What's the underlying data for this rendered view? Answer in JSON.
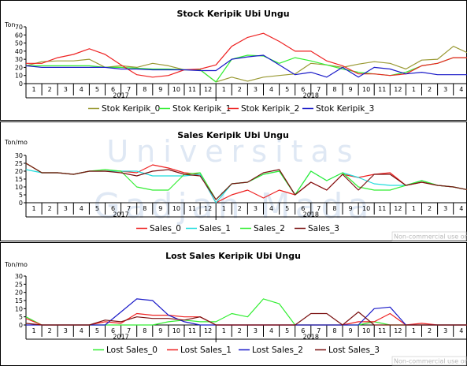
{
  "watermark": {
    "line1": "Universitas",
    "line2": "Gadjah Mada"
  },
  "chart_data": [
    {
      "type": "line",
      "title": "Stock Keripik Ubi Ungu",
      "ylabel": "Ton",
      "ylim": [
        0,
        70
      ],
      "yticks": [
        0,
        10,
        20,
        30,
        40,
        50,
        60,
        70
      ],
      "x_tick_labels": [
        "1",
        "2",
        "3",
        "4",
        "5",
        "6",
        "7",
        "8",
        "9",
        "10",
        "11",
        "12",
        "1",
        "2",
        "3",
        "4",
        "5",
        "6",
        "7",
        "8",
        "9",
        "10",
        "11",
        "12",
        "1",
        "2",
        "3",
        "4"
      ],
      "year_labels": [
        "2017",
        "2018"
      ],
      "noncommercial": "Non-commercial use only",
      "series": [
        {
          "name": "Stok Keripik_0",
          "color": "#999933",
          "values": [
            22,
            27,
            28,
            28,
            30,
            20,
            22,
            20,
            25,
            22,
            17,
            17,
            2,
            8,
            3,
            8,
            10,
            12,
            25,
            23,
            20,
            24,
            27,
            25,
            18,
            29,
            30,
            46,
            37
          ]
        },
        {
          "name": "Stok Keripik_1",
          "color": "#33ee33",
          "values": [
            22,
            22,
            22,
            22,
            22,
            20,
            20,
            19,
            18,
            18,
            17,
            17,
            2,
            30,
            35,
            34,
            25,
            32,
            28,
            23,
            18,
            14,
            12,
            10,
            14,
            22,
            25,
            32,
            32
          ]
        },
        {
          "name": "Stok Keripik_2",
          "color": "#ee2222",
          "values": [
            25,
            25,
            32,
            36,
            43,
            36,
            23,
            11,
            8,
            10,
            17,
            18,
            23,
            46,
            57,
            62,
            52,
            40,
            40,
            28,
            22,
            12,
            12,
            10,
            12,
            22,
            25,
            32,
            32
          ]
        },
        {
          "name": "Stok Keripik_3",
          "color": "#1a1ac8",
          "values": [
            22,
            20,
            20,
            20,
            20,
            20,
            18,
            18,
            17,
            17,
            17,
            16,
            16,
            30,
            33,
            35,
            23,
            11,
            14,
            8,
            20,
            8,
            20,
            18,
            12,
            14,
            11,
            11,
            11
          ]
        }
      ]
    },
    {
      "type": "line",
      "title": "Sales Keripik Ubi Ungu",
      "ylabel": "Ton/mo",
      "ylim": [
        0,
        30
      ],
      "yticks": [
        0,
        5,
        10,
        15,
        20,
        25,
        30
      ],
      "x_tick_labels": [
        "1",
        "2",
        "3",
        "4",
        "5",
        "6",
        "7",
        "8",
        "9",
        "10",
        "11",
        "12",
        "1",
        "2",
        "3",
        "4",
        "5",
        "6",
        "7",
        "8",
        "9",
        "10",
        "11",
        "12",
        "1",
        "2",
        "3",
        "4"
      ],
      "year_labels": [
        "2017",
        "2018"
      ],
      "noncommercial": "Non-commercial use only",
      "series": [
        {
          "name": "Sales_0",
          "color": "#ee2222",
          "values": [
            25,
            19,
            19,
            18,
            20,
            20,
            20,
            19,
            24,
            22,
            19,
            18,
            0,
            5,
            8,
            3,
            8,
            5,
            13,
            8,
            18,
            16,
            18,
            19,
            11,
            13,
            11,
            10,
            8
          ]
        },
        {
          "name": "Sales_1",
          "color": "#22dddd",
          "values": [
            21,
            19,
            19,
            18,
            20,
            20,
            20,
            20,
            17,
            17,
            17,
            18,
            0,
            12,
            13,
            18,
            20,
            5,
            20,
            14,
            19,
            16,
            12,
            11,
            11,
            14,
            11,
            10,
            8
          ]
        },
        {
          "name": "Sales_2",
          "color": "#33ee33",
          "values": [
            25,
            19,
            19,
            18,
            20,
            21,
            20,
            10,
            8,
            8,
            18,
            19,
            2,
            12,
            13,
            18,
            20,
            5,
            20,
            14,
            19,
            10,
            8,
            8,
            11,
            14,
            11,
            10,
            8
          ]
        },
        {
          "name": "Sales_3",
          "color": "#7a1010",
          "values": [
            25,
            19,
            19,
            18,
            20,
            20,
            19,
            17,
            20,
            21,
            18,
            17,
            2,
            12,
            13,
            19,
            21,
            5,
            13,
            8,
            18,
            8,
            18,
            18,
            11,
            13,
            11,
            10,
            8
          ]
        }
      ]
    },
    {
      "type": "line",
      "title": "Lost Sales Keripik Ubi Ungu",
      "ylabel": "Ton/mo",
      "ylim": [
        0,
        30
      ],
      "yticks": [
        0,
        5,
        10,
        15,
        20,
        25,
        30
      ],
      "x_tick_labels": [
        "1",
        "2",
        "3",
        "4",
        "5",
        "6",
        "7",
        "8",
        "9",
        "10",
        "11",
        "12",
        "1",
        "2",
        "3",
        "4",
        "5",
        "6",
        "7",
        "8",
        "9",
        "10",
        "11",
        "12",
        "1",
        "2",
        "3",
        "4"
      ],
      "year_labels": [
        "2017",
        "2018"
      ],
      "noncommercial": "Non-commercial use only",
      "series": [
        {
          "name": "Lost Sales_0",
          "color": "#33ee33",
          "values": [
            5,
            0,
            0,
            0,
            0,
            0,
            0,
            0,
            0,
            2,
            3,
            2,
            2,
            7,
            5,
            16,
            13,
            0,
            0,
            0,
            0,
            0,
            2,
            0,
            0,
            0,
            0,
            0,
            0
          ]
        },
        {
          "name": "Lost Sales_1",
          "color": "#ee2222",
          "values": [
            4,
            0,
            0,
            0,
            0,
            2,
            1,
            7,
            6,
            6,
            5,
            5,
            0,
            0,
            0,
            0,
            0,
            0,
            0,
            0,
            0,
            2,
            2,
            7,
            0,
            1,
            0,
            0,
            0
          ]
        },
        {
          "name": "Lost Sales_2",
          "color": "#1a1ac8",
          "values": [
            0,
            0,
            0,
            0,
            0,
            0,
            8,
            16,
            15,
            6,
            2,
            0,
            0,
            0,
            0,
            0,
            0,
            0,
            0,
            0,
            0,
            0,
            10,
            11,
            0,
            0,
            0,
            0,
            0
          ]
        },
        {
          "name": "Lost Sales_3",
          "color": "#7a1010",
          "values": [
            1,
            0,
            0,
            0,
            0,
            3,
            2,
            5,
            4,
            4,
            3,
            5,
            0,
            0,
            0,
            0,
            0,
            0,
            7,
            7,
            0,
            8,
            0,
            0,
            0,
            0,
            0,
            0,
            0
          ]
        }
      ]
    }
  ]
}
